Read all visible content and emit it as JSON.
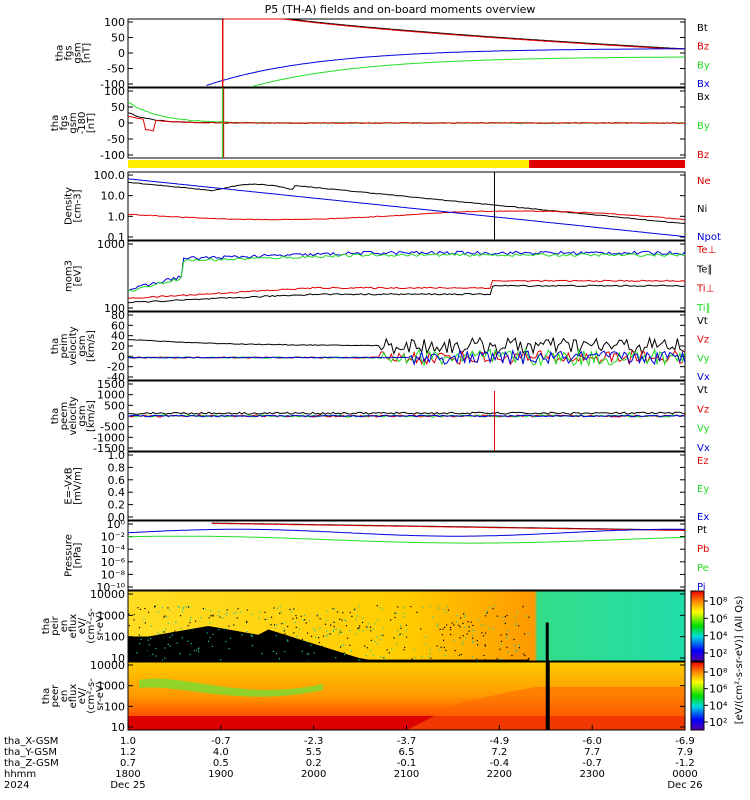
{
  "title": "P5 (TH-A) fields and on-board moments overview",
  "colors": {
    "black": "#000000",
    "red": "#e00000",
    "green": "#22dd22",
    "blue": "#0000dd",
    "yellow": "#ffee00"
  },
  "chart_data": [
    {
      "type": "line",
      "name": "panel1",
      "ylabel": [
        "tha",
        "fgs",
        "gsm",
        "[nT]"
      ],
      "yticks": [
        "100",
        "50",
        "0",
        "-50",
        "-100"
      ],
      "ylim": [
        -100,
        100
      ],
      "legend": [
        {
          "name": "Bt",
          "color": "black"
        },
        {
          "name": "Bz",
          "color": "red"
        },
        {
          "name": "By",
          "color": "green"
        },
        {
          "name": "Bx",
          "color": "blue"
        }
      ]
    },
    {
      "type": "line",
      "name": "panel2",
      "ylabel": [
        "tha",
        "fgs",
        "gsm",
        "-180",
        "[nT]"
      ],
      "yticks": [
        "100",
        "50",
        "0",
        "-50",
        "-100"
      ],
      "ylim": [
        -120,
        120
      ],
      "legend": [
        {
          "name": "Bx",
          "color": "black"
        },
        {
          "name": "By",
          "color": "green"
        },
        {
          "name": "Bz",
          "color": "red"
        }
      ]
    },
    {
      "type": "bar",
      "name": "status-bar",
      "segments": [
        {
          "from": 0,
          "to": 0.72,
          "color": "yellow"
        },
        {
          "from": 0.72,
          "to": 1,
          "color": "red"
        }
      ]
    },
    {
      "type": "line",
      "name": "panel3",
      "scale": "log",
      "ylabel": [
        "Density",
        "[cm-3]"
      ],
      "yticks": [
        "100.0",
        "10.0",
        "1.0",
        "0.1"
      ],
      "legend": [
        {
          "name": "Ne",
          "color": "red"
        },
        {
          "name": "Ni",
          "color": "black"
        },
        {
          "name": "Npot",
          "color": "blue"
        }
      ]
    },
    {
      "type": "line",
      "name": "panel4",
      "scale": "log",
      "ylabel": [
        "mom3",
        "[eV]"
      ],
      "yticks": [
        "1000",
        "100"
      ],
      "legend": [
        {
          "name": "Te⊥",
          "color": "red"
        },
        {
          "name": "Te∥",
          "color": "black"
        },
        {
          "name": "Ti⊥",
          "color": "red"
        },
        {
          "name": "Ti∥",
          "color": "green"
        }
      ]
    },
    {
      "type": "line",
      "name": "panel5",
      "ylabel": [
        "tha",
        "peim",
        "velocity",
        "gsm",
        "[km/s]"
      ],
      "yticks": [
        "80",
        "60",
        "40",
        "20",
        "0",
        "-20",
        "-40"
      ],
      "ylim": [
        -40,
        80
      ],
      "legend": [
        {
          "name": "Vt",
          "color": "black"
        },
        {
          "name": "Vz",
          "color": "red"
        },
        {
          "name": "Vy",
          "color": "green"
        },
        {
          "name": "Vx",
          "color": "blue"
        }
      ]
    },
    {
      "type": "line",
      "name": "panel6",
      "ylabel": [
        "tha",
        "peem",
        "velocity",
        "gsm",
        "[km/s]"
      ],
      "yticks": [
        "1500",
        "1000",
        "500",
        "0",
        "-500",
        "-1000",
        "-1500"
      ],
      "ylim": [
        -1500,
        1500
      ],
      "legend": [
        {
          "name": "Vt",
          "color": "black"
        },
        {
          "name": "Vz",
          "color": "red"
        },
        {
          "name": "Vy",
          "color": "green"
        },
        {
          "name": "Vx",
          "color": "blue"
        }
      ]
    },
    {
      "type": "line",
      "name": "panel7",
      "ylabel": [
        "E=-VxB",
        "[mV/m]"
      ],
      "yticks": [
        "1.0",
        "0.8",
        "0.6",
        "0.4",
        "0.2",
        "0.0"
      ],
      "ylim": [
        0,
        1
      ],
      "legend": [
        {
          "name": "Ez",
          "color": "red"
        },
        {
          "name": "Ey",
          "color": "green"
        },
        {
          "name": "Ex",
          "color": "blue"
        }
      ]
    },
    {
      "type": "line",
      "name": "panel8",
      "scale": "log",
      "ylabel": [
        "Pressure",
        "[nPa]"
      ],
      "yticks": [
        "10⁰",
        "10⁻²",
        "10⁻⁴",
        "10⁻⁶",
        "10⁻⁸",
        "10⁻¹⁰"
      ],
      "legend": [
        {
          "name": "Pt",
          "color": "black"
        },
        {
          "name": "Pb",
          "color": "red"
        },
        {
          "name": "Pe",
          "color": "green"
        },
        {
          "name": "Pi",
          "color": "blue"
        }
      ]
    },
    {
      "type": "heatmap",
      "name": "panel9",
      "ylabel": [
        "tha",
        "peir",
        "en",
        "eflux",
        "eV/",
        "(cm²-s-",
        "sr-eV)"
      ],
      "yticks": [
        "10000",
        "1000",
        "100",
        "10"
      ]
    },
    {
      "type": "heatmap",
      "name": "panel10",
      "ylabel": [
        "tha",
        "peer",
        "en",
        "eflux",
        "eV/",
        "(cm²-s-",
        "sr-eV)"
      ],
      "yticks": [
        "10000",
        "1000",
        "100",
        "10"
      ]
    }
  ],
  "colorbars": [
    {
      "ticks": [
        "10⁸",
        "10⁶",
        "10⁴",
        "10²"
      ]
    },
    {
      "ticks": [
        "10⁸",
        "10⁶",
        "10⁴",
        "10²"
      ]
    }
  ],
  "colorbar_label": "[eV/(cm²-s-sr-eV)] (All Qs)",
  "xaxis": {
    "row_labels": [
      "tha_X-GSM",
      "tha_Y-GSM",
      "tha_Z-GSM",
      "hhmm",
      "2024"
    ],
    "x_gsm": [
      "1.0",
      "-0.7",
      "-2.3",
      "-3.7",
      "-4.9",
      "-6.0",
      "-6.9"
    ],
    "y_gsm": [
      "1.2",
      "4.0",
      "5.5",
      "6.5",
      "7.2",
      "7.7",
      "7.9"
    ],
    "z_gsm": [
      "0.7",
      "0.5",
      "0.2",
      "-0.1",
      "-0.4",
      "-0.7",
      "-1.2"
    ],
    "hhmm": [
      "1800",
      "1900",
      "2000",
      "2100",
      "2200",
      "2300",
      "0000"
    ],
    "date_start": "Dec 25",
    "date_end": "Dec 26"
  }
}
